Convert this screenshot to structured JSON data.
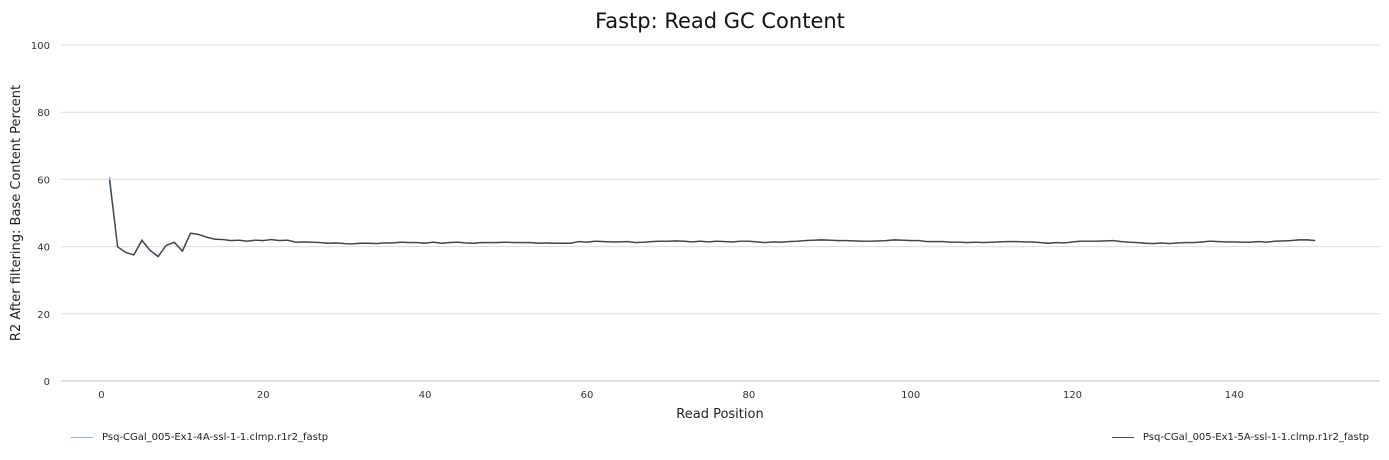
{
  "chart_data": {
    "type": "line",
    "title": "Fastp: Read GC Content",
    "xlabel": "Read Position",
    "ylabel": "R2 After filtering: Base Content Percent",
    "xlim": [
      -5,
      158
    ],
    "ylim": [
      0,
      100
    ],
    "xticks": [
      0,
      20,
      40,
      60,
      80,
      100,
      120,
      140
    ],
    "yticks": [
      0,
      20,
      40,
      60,
      80,
      100
    ],
    "grid": true,
    "legend_position": "bottom",
    "series": [
      {
        "name": "Psq-CGal_005-Ex1-4A-ssl-1-1.clmp.r1r2_fastp",
        "color": "#7cb5ec",
        "x": [
          1,
          2,
          3,
          4,
          5,
          6,
          7,
          8,
          9,
          10,
          11,
          12,
          13,
          14,
          15,
          16,
          17,
          18,
          19,
          20,
          21,
          22,
          23,
          24,
          25,
          26,
          27,
          28,
          29,
          30,
          31,
          32,
          33,
          34,
          35,
          36,
          37,
          38,
          39,
          40,
          41,
          42,
          43,
          44,
          45,
          46,
          47,
          48,
          49,
          50,
          51,
          52,
          53,
          54,
          55,
          56,
          57,
          58,
          59,
          60,
          61,
          62,
          63,
          64,
          65,
          66,
          67,
          68,
          69,
          70,
          71,
          72,
          73,
          74,
          75,
          76,
          77,
          78,
          79,
          80,
          81,
          82,
          83,
          84,
          85,
          86,
          87,
          88,
          89,
          90,
          91,
          92,
          93,
          94,
          95,
          96,
          97,
          98,
          99,
          100,
          101,
          102,
          103,
          104,
          105,
          106,
          107,
          108,
          109,
          110,
          111,
          112,
          113,
          114,
          115,
          116,
          117,
          118,
          119,
          120,
          121,
          122,
          123,
          124,
          125,
          126,
          127,
          128,
          129,
          130,
          131,
          132,
          133,
          134,
          135,
          136,
          137,
          138,
          139,
          140,
          141,
          142,
          143,
          144,
          145,
          146,
          147,
          148,
          149,
          150
        ],
        "y": [
          60.8,
          39.9,
          38.2,
          37.6,
          42.1,
          38.9,
          37.2,
          40.3,
          41.3,
          38.8,
          44.0,
          43.6,
          42.8,
          42.2,
          42.1,
          41.8,
          41.9,
          41.6,
          41.9,
          41.8,
          42.1,
          41.8,
          41.9,
          41.3,
          41.4,
          41.3,
          41.2,
          41.0,
          41.1,
          40.9,
          40.8,
          41.0,
          41.0,
          40.9,
          41.1,
          41.1,
          41.3,
          41.2,
          41.2,
          41.0,
          41.3,
          41.0,
          41.2,
          41.3,
          41.1,
          41.0,
          41.2,
          41.2,
          41.2,
          41.3,
          41.2,
          41.2,
          41.2,
          41.0,
          41.1,
          41.0,
          41.0,
          41.0,
          41.5,
          41.3,
          41.6,
          41.5,
          41.4,
          41.4,
          41.5,
          41.2,
          41.3,
          41.5,
          41.6,
          41.6,
          41.7,
          41.6,
          41.4,
          41.6,
          41.4,
          41.6,
          41.5,
          41.4,
          41.6,
          41.6,
          41.4,
          41.2,
          41.4,
          41.3,
          41.5,
          41.6,
          41.8,
          41.9,
          42.0,
          41.9,
          41.8,
          41.8,
          41.7,
          41.6,
          41.6,
          41.7,
          41.8,
          42.0,
          41.9,
          41.8,
          41.8,
          41.5,
          41.5,
          41.5,
          41.3,
          41.3,
          41.2,
          41.3,
          41.2,
          41.3,
          41.4,
          41.5,
          41.5,
          41.4,
          41.4,
          41.2,
          41.0,
          41.2,
          41.1,
          41.4,
          41.6,
          41.6,
          41.6,
          41.7,
          41.8,
          41.5,
          41.3,
          41.2,
          41.0,
          40.9,
          41.1,
          40.9,
          41.1,
          41.2,
          41.2,
          41.4,
          41.6,
          41.5,
          41.4,
          41.4,
          41.3,
          41.3,
          41.5,
          41.3,
          41.6,
          41.7,
          41.8,
          42.0,
          42.0,
          41.8
        ]
      },
      {
        "name": "Psq-CGal_005-Ex1-5A-ssl-1-1.clmp.r1r2_fastp",
        "color": "#434348",
        "x": [
          1,
          2,
          3,
          4,
          5,
          6,
          7,
          8,
          9,
          10,
          11,
          12,
          13,
          14,
          15,
          16,
          17,
          18,
          19,
          20,
          21,
          22,
          23,
          24,
          25,
          26,
          27,
          28,
          29,
          30,
          31,
          32,
          33,
          34,
          35,
          36,
          37,
          38,
          39,
          40,
          41,
          42,
          43,
          44,
          45,
          46,
          47,
          48,
          49,
          50,
          51,
          52,
          53,
          54,
          55,
          56,
          57,
          58,
          59,
          60,
          61,
          62,
          63,
          64,
          65,
          66,
          67,
          68,
          69,
          70,
          71,
          72,
          73,
          74,
          75,
          76,
          77,
          78,
          79,
          80,
          81,
          82,
          83,
          84,
          85,
          86,
          87,
          88,
          89,
          90,
          91,
          92,
          93,
          94,
          95,
          96,
          97,
          98,
          99,
          100,
          101,
          102,
          103,
          104,
          105,
          106,
          107,
          108,
          109,
          110,
          111,
          112,
          113,
          114,
          115,
          116,
          117,
          118,
          119,
          120,
          121,
          122,
          123,
          124,
          125,
          126,
          127,
          128,
          129,
          130,
          131,
          132,
          133,
          134,
          135,
          136,
          137,
          138,
          139,
          140,
          141,
          142,
          143,
          144,
          145,
          146,
          147,
          148,
          149,
          150
        ],
        "y": [
          59.8,
          39.9,
          38.3,
          37.5,
          41.8,
          38.9,
          37.0,
          40.4,
          41.3,
          38.6,
          44.0,
          43.6,
          42.8,
          42.2,
          42.1,
          41.8,
          41.9,
          41.6,
          41.9,
          41.8,
          42.1,
          41.8,
          41.9,
          41.3,
          41.4,
          41.3,
          41.2,
          41.0,
          41.1,
          40.9,
          40.8,
          41.0,
          41.0,
          40.9,
          41.1,
          41.1,
          41.3,
          41.2,
          41.2,
          41.0,
          41.3,
          41.0,
          41.2,
          41.3,
          41.1,
          41.0,
          41.2,
          41.2,
          41.2,
          41.3,
          41.2,
          41.2,
          41.2,
          41.0,
          41.1,
          41.0,
          41.0,
          41.0,
          41.5,
          41.3,
          41.6,
          41.5,
          41.4,
          41.4,
          41.5,
          41.2,
          41.3,
          41.5,
          41.6,
          41.6,
          41.7,
          41.6,
          41.4,
          41.6,
          41.4,
          41.6,
          41.5,
          41.4,
          41.6,
          41.6,
          41.4,
          41.2,
          41.4,
          41.3,
          41.5,
          41.6,
          41.8,
          41.9,
          42.0,
          41.9,
          41.8,
          41.8,
          41.7,
          41.6,
          41.6,
          41.7,
          41.8,
          42.0,
          41.9,
          41.8,
          41.8,
          41.5,
          41.5,
          41.5,
          41.3,
          41.3,
          41.2,
          41.3,
          41.2,
          41.3,
          41.4,
          41.5,
          41.5,
          41.4,
          41.4,
          41.2,
          41.0,
          41.2,
          41.1,
          41.4,
          41.6,
          41.6,
          41.6,
          41.7,
          41.8,
          41.5,
          41.3,
          41.2,
          41.0,
          40.9,
          41.1,
          40.9,
          41.1,
          41.2,
          41.2,
          41.4,
          41.6,
          41.5,
          41.4,
          41.4,
          41.3,
          41.3,
          41.5,
          41.3,
          41.6,
          41.7,
          41.8,
          42.0,
          42.0,
          41.8
        ]
      }
    ]
  }
}
